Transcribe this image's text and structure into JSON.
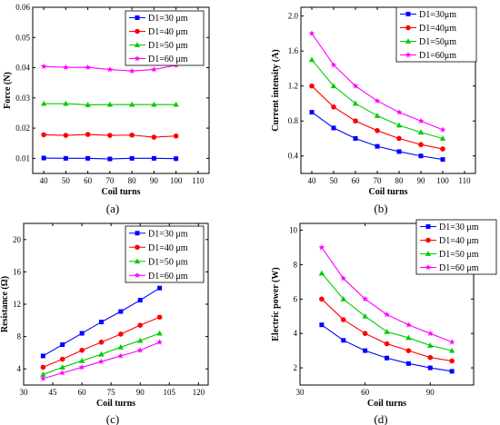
{
  "chart_data": [
    {
      "type": "line",
      "panel_label": "(a)",
      "xlabel": "Coil turns",
      "ylabel": "Force (N)",
      "xlim": [
        35,
        115
      ],
      "ylim": [
        0.005,
        0.06
      ],
      "xticks": [
        40,
        50,
        60,
        70,
        80,
        90,
        100,
        110
      ],
      "xtick_labels": [
        "40",
        "50",
        "60",
        "70",
        "80",
        "90",
        "100",
        "110"
      ],
      "yticks": [
        0.01,
        0.02,
        0.03,
        0.04,
        0.05,
        0.06
      ],
      "ytick_labels": [
        "0.01",
        "0.02",
        "0.03",
        "0.04",
        "0.05",
        "0.06"
      ],
      "grid": false,
      "legend_position": "top-right",
      "x": [
        40,
        50,
        60,
        70,
        80,
        90,
        100
      ],
      "series": [
        {
          "name": "D1=30 μm",
          "color": "#0000ff",
          "marker": "square",
          "values": [
            0.0101,
            0.01,
            0.01,
            0.0098,
            0.01,
            0.01,
            0.0099
          ]
        },
        {
          "name": "D1=40 μm",
          "color": "#ff0000",
          "marker": "circle",
          "values": [
            0.0178,
            0.0176,
            0.0179,
            0.0176,
            0.0177,
            0.017,
            0.0174
          ]
        },
        {
          "name": "D1=50 μm",
          "color": "#00cc00",
          "marker": "triangle",
          "values": [
            0.0281,
            0.0281,
            0.0277,
            0.0278,
            0.0278,
            0.0278,
            0.0278
          ]
        },
        {
          "name": "D1=60 μm",
          "color": "#ff00ff",
          "marker": "star",
          "values": [
            0.0404,
            0.0401,
            0.0401,
            0.0394,
            0.0389,
            0.0394,
            0.0408
          ]
        }
      ]
    },
    {
      "type": "line",
      "panel_label": "(b)",
      "xlabel": "Coil turns",
      "ylabel": "Current intensity (A)",
      "xlim": [
        35,
        115
      ],
      "ylim": [
        0.2,
        2.1
      ],
      "xticks": [
        40,
        50,
        60,
        70,
        80,
        90,
        100,
        110
      ],
      "xtick_labels": [
        "40",
        "50",
        "60",
        "70",
        "80",
        "90",
        "100",
        "110"
      ],
      "yticks": [
        0.4,
        0.8,
        1.2,
        1.6,
        2.0
      ],
      "ytick_labels": [
        "0.4",
        "0.8",
        "1.2",
        "1.6",
        "2.0"
      ],
      "grid": false,
      "legend_position": "top-right",
      "x": [
        40,
        50,
        60,
        70,
        80,
        90,
        100
      ],
      "series": [
        {
          "name": "D1=30μm",
          "color": "#0000ff",
          "marker": "square",
          "values": [
            0.9,
            0.72,
            0.6,
            0.51,
            0.45,
            0.4,
            0.36
          ]
        },
        {
          "name": "D1=40μm",
          "color": "#ff0000",
          "marker": "circle",
          "values": [
            1.2,
            0.96,
            0.8,
            0.69,
            0.6,
            0.53,
            0.48
          ]
        },
        {
          "name": "D1=50μm",
          "color": "#00cc00",
          "marker": "triangle",
          "values": [
            1.5,
            1.2,
            1.0,
            0.86,
            0.75,
            0.67,
            0.6
          ]
        },
        {
          "name": "D1=60μm",
          "color": "#ff00ff",
          "marker": "star",
          "values": [
            1.8,
            1.44,
            1.2,
            1.03,
            0.9,
            0.8,
            0.7
          ]
        }
      ]
    },
    {
      "type": "line",
      "panel_label": "(c)",
      "xlabel": "Coil turns",
      "ylabel": "Resistance  (Ω)",
      "xlim": [
        30,
        125
      ],
      "ylim": [
        2,
        22
      ],
      "xticks": [
        30,
        45,
        60,
        75,
        90,
        105,
        120
      ],
      "xtick_labels": [
        "30",
        "45",
        "60",
        "75",
        "90",
        "105",
        "120"
      ],
      "yticks": [
        4,
        8,
        12,
        16,
        20
      ],
      "ytick_labels": [
        "4",
        "8",
        "12",
        "16",
        "20"
      ],
      "grid": false,
      "legend_position": "top-right",
      "x": [
        40,
        50,
        60,
        70,
        80,
        90,
        100
      ],
      "series": [
        {
          "name": "D1=30 μm",
          "color": "#0000ff",
          "marker": "square",
          "values": [
            5.6,
            7.0,
            8.4,
            9.8,
            11.1,
            12.5,
            14.0
          ]
        },
        {
          "name": "D1=40 μm",
          "color": "#ff0000",
          "marker": "circle",
          "values": [
            4.2,
            5.2,
            6.3,
            7.3,
            8.3,
            9.4,
            10.4
          ]
        },
        {
          "name": "D1=50 μm",
          "color": "#00cc00",
          "marker": "triangle",
          "values": [
            3.3,
            4.2,
            5.0,
            5.8,
            6.7,
            7.5,
            8.4
          ]
        },
        {
          "name": "D1=60 μm",
          "color": "#ff00ff",
          "marker": "star",
          "values": [
            2.8,
            3.5,
            4.2,
            4.9,
            5.6,
            6.3,
            7.3
          ]
        }
      ]
    },
    {
      "type": "line",
      "panel_label": "(d)",
      "xlabel": "Coil turns",
      "ylabel": "Electric power  (W)",
      "xlim": [
        30,
        110
      ],
      "ylim": [
        1,
        10.4
      ],
      "xticks": [
        30,
        60,
        90
      ],
      "xtick_labels": [
        "30",
        "60",
        "90"
      ],
      "yticks": [
        2,
        4,
        6,
        8,
        10
      ],
      "ytick_labels": [
        "2",
        "4",
        "6",
        "8",
        "10"
      ],
      "grid": false,
      "legend_position": "top-right",
      "x": [
        40,
        50,
        60,
        70,
        80,
        90,
        100
      ],
      "series": [
        {
          "name": "D1=30 μm",
          "color": "#0000ff",
          "marker": "square",
          "values": [
            4.5,
            3.6,
            3.0,
            2.57,
            2.25,
            2.0,
            1.8
          ]
        },
        {
          "name": "D1=40 μm",
          "color": "#ff0000",
          "marker": "circle",
          "values": [
            6.0,
            4.8,
            4.0,
            3.4,
            3.0,
            2.6,
            2.4
          ]
        },
        {
          "name": "D1=50 μm",
          "color": "#00cc00",
          "marker": "triangle",
          "values": [
            7.5,
            6.0,
            5.0,
            4.1,
            3.75,
            3.3,
            3.0
          ]
        },
        {
          "name": "D1=60 μm",
          "color": "#ff00ff",
          "marker": "star",
          "values": [
            9.0,
            7.2,
            6.0,
            5.1,
            4.5,
            4.0,
            3.5
          ]
        }
      ]
    }
  ]
}
